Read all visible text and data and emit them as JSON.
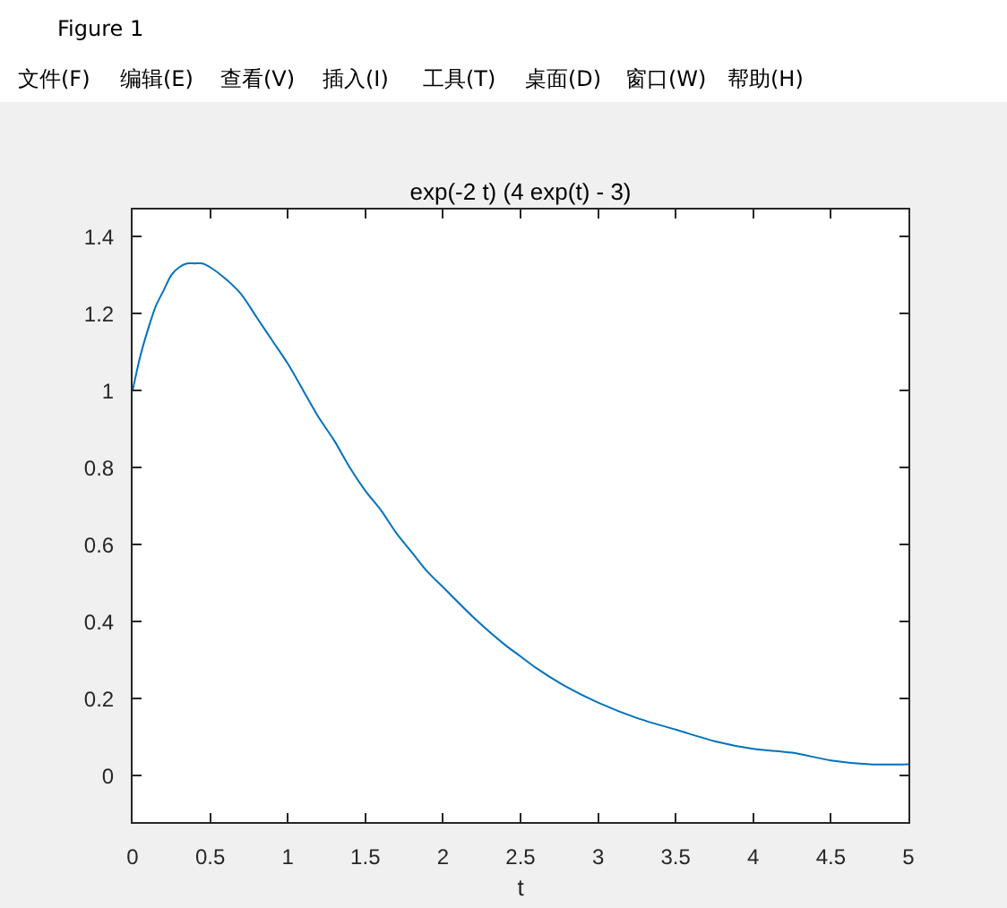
{
  "chart_data": {
    "type": "line",
    "title": "exp(-2 t) (4 exp(t) - 3)",
    "xlabel": "t",
    "annotations": [
      "Figure 1",
      "文件(F)",
      "编辑(E)",
      "查看(V)",
      "插入(I)",
      "工具(T)",
      "桌面(D)",
      "窗口(W)",
      "帮助(H)"
    ],
    "x": [
      0,
      0.05,
      0.1,
      0.15,
      0.2,
      0.25,
      0.3,
      0.35,
      0.4,
      0.45,
      0.5,
      0.6,
      0.7,
      0.8,
      0.9,
      1.0,
      1.1,
      1.2,
      1.3,
      1.4,
      1.5,
      1.6,
      1.7,
      1.8,
      1.9,
      2.0,
      2.2,
      2.4,
      2.5,
      2.6,
      2.8,
      3.0,
      3.25,
      3.5,
      3.75,
      4.0,
      4.25,
      4.5,
      4.75,
      5.0
    ],
    "series": [
      {
        "color": "#0072bd",
        "values": [
          1.0,
          1.09,
          1.16,
          1.22,
          1.26,
          1.3,
          1.32,
          1.33,
          1.33,
          1.33,
          1.32,
          1.29,
          1.25,
          1.19,
          1.13,
          1.07,
          1.0,
          0.93,
          0.87,
          0.8,
          0.74,
          0.69,
          0.63,
          0.58,
          0.53,
          0.49,
          0.41,
          0.34,
          0.31,
          0.28,
          0.23,
          0.19,
          0.15,
          0.12,
          0.09,
          0.07,
          0.06,
          0.04,
          0.03,
          0.03
        ]
      }
    ],
    "xlim": [
      0,
      5
    ],
    "ylim": [
      -0.12,
      1.47
    ],
    "xticks": [
      0,
      0.5,
      1,
      1.5,
      2,
      2.5,
      3,
      3.5,
      4,
      4.5,
      5
    ],
    "yticks": [
      0,
      0.2,
      0.4,
      0.6,
      0.8,
      1,
      1.2,
      1.4
    ],
    "line_style": "solid",
    "marker": "none"
  }
}
